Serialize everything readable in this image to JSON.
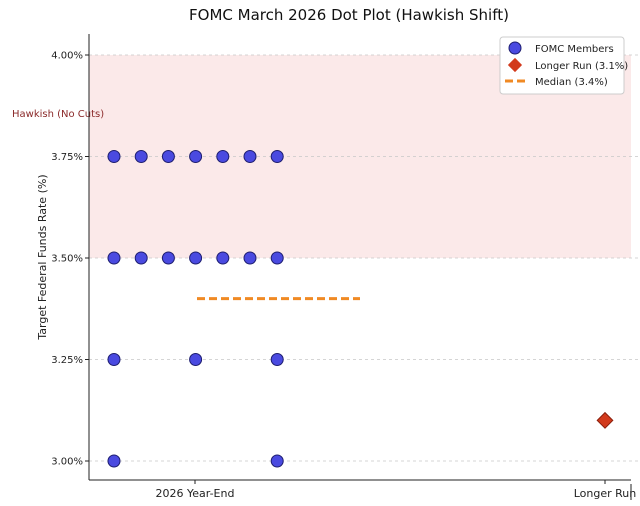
{
  "chart_data": {
    "type": "scatter",
    "title": "FOMC March 2026 Dot Plot (Hawkish Shift)",
    "xlabel": "",
    "ylabel": "Target Federal Funds Rate (%)",
    "ylim": [
      2.95,
      4.05
    ],
    "y_ticks": [
      "3.00%",
      "3.25%",
      "3.50%",
      "3.75%",
      "4.00%"
    ],
    "y_tick_values": [
      3.0,
      3.25,
      3.5,
      3.75,
      4.0
    ],
    "categories": [
      "2026 Year-End",
      "Longer Run"
    ],
    "grid": "horizontal dashed",
    "legend_position": "top-right",
    "shaded_band": {
      "label": "Hawkish (No Cuts)",
      "y_range": [
        3.5,
        4.0
      ],
      "color": "#fbe9e9",
      "label_color": "#8b2a2a"
    },
    "series": [
      {
        "name": "FOMC Members",
        "marker": "circle",
        "color": "#4a4ae0",
        "points": [
          {
            "x": "2026 Year-End",
            "y": 3.75,
            "count": 7
          },
          {
            "x": "2026 Year-End",
            "y": 3.5,
            "count": 7
          },
          {
            "x": "2026 Year-End",
            "y": 3.25,
            "count": 3,
            "slots": [
              0,
              3,
              6
            ]
          },
          {
            "x": "2026 Year-End",
            "y": 3.0,
            "count": 2,
            "slots": [
              0,
              6
            ]
          }
        ]
      },
      {
        "name": "Longer Run (3.1%)",
        "marker": "diamond",
        "color": "#d23a1c",
        "points": [
          {
            "x": "Longer Run",
            "y": 3.1
          }
        ]
      },
      {
        "name": "Median (3.4%)",
        "marker": "dashed-line",
        "color": "#f08a24",
        "y": 3.4,
        "x_category": "2026 Year-End"
      }
    ]
  }
}
